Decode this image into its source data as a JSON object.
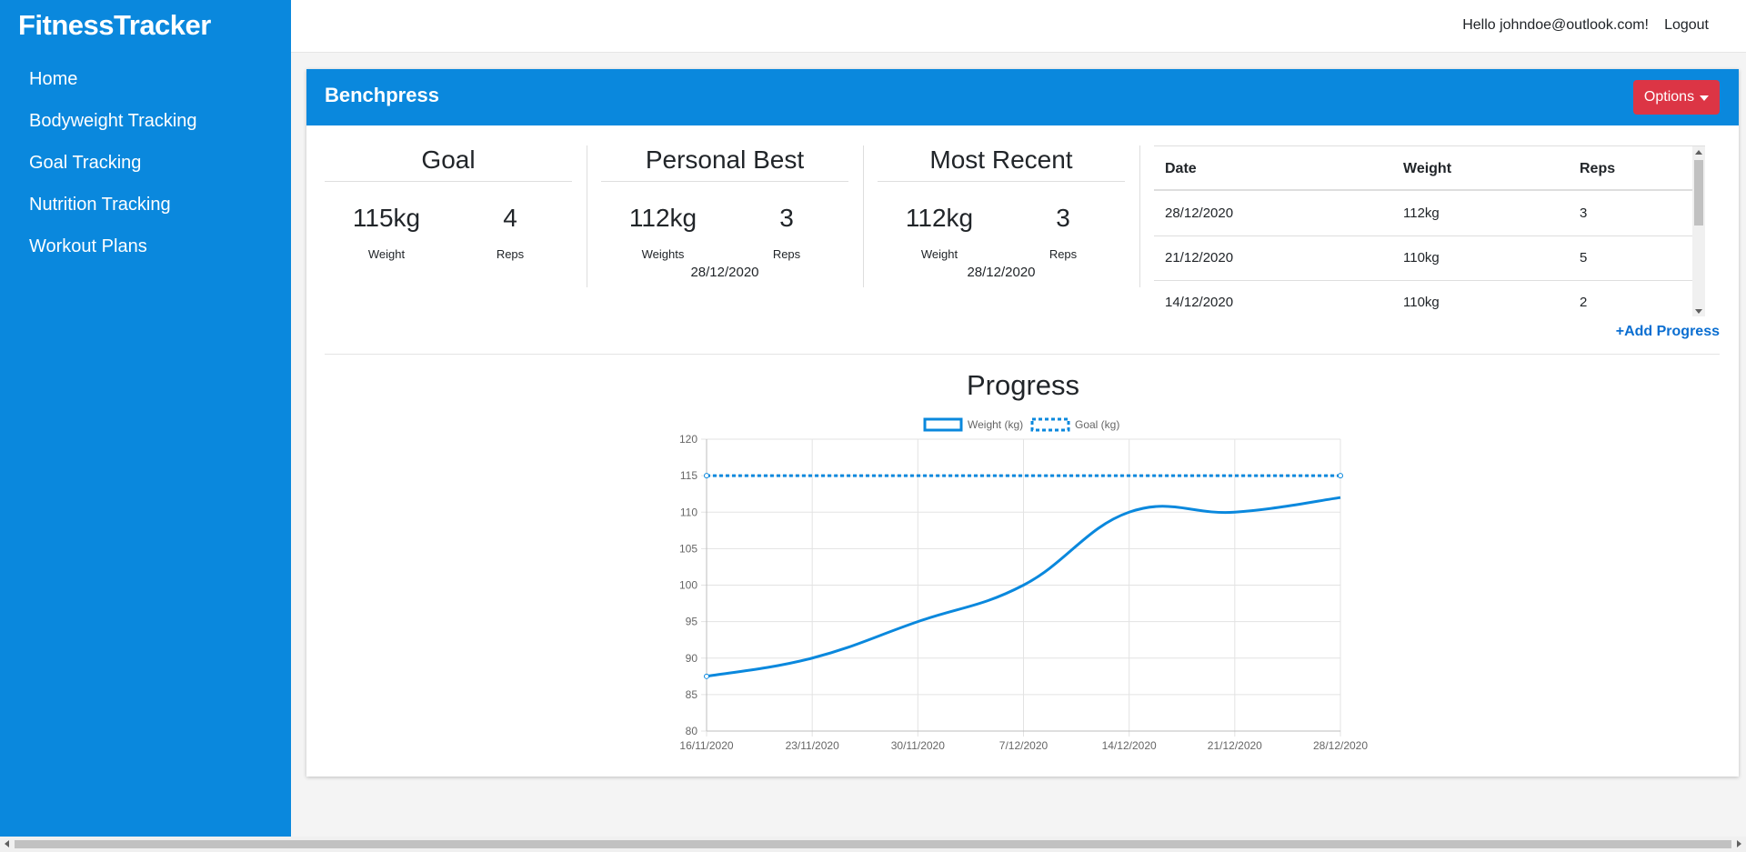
{
  "app": {
    "brand": "FitnessTracker"
  },
  "nav": {
    "items": [
      {
        "label": "Home"
      },
      {
        "label": "Bodyweight Tracking"
      },
      {
        "label": "Goal Tracking"
      },
      {
        "label": "Nutrition Tracking"
      },
      {
        "label": "Workout Plans"
      }
    ]
  },
  "topbar": {
    "greeting": "Hello johndoe@outlook.com!",
    "logout": "Logout"
  },
  "exercise": {
    "title": "Benchpress",
    "options_label": "Options",
    "goal": {
      "title": "Goal",
      "weight": "115kg",
      "weight_label": "Weight",
      "reps": "4",
      "reps_label": "Reps"
    },
    "personal_best": {
      "title": "Personal Best",
      "weight": "112kg",
      "weight_label": "Weights",
      "reps": "3",
      "reps_label": "Reps",
      "date": "28/12/2020"
    },
    "most_recent": {
      "title": "Most Recent",
      "weight": "112kg",
      "weight_label": "Weight",
      "reps": "3",
      "reps_label": "Reps",
      "date": "28/12/2020"
    }
  },
  "history": {
    "headers": {
      "date": "Date",
      "weight": "Weight",
      "reps": "Reps"
    },
    "rows": [
      {
        "date": "28/12/2020",
        "weight": "112kg",
        "reps": "3"
      },
      {
        "date": "21/12/2020",
        "weight": "110kg",
        "reps": "5"
      },
      {
        "date": "14/12/2020",
        "weight": "110kg",
        "reps": "2"
      }
    ],
    "add_label": "+Add Progress"
  },
  "progress": {
    "title": "Progress"
  },
  "colors": {
    "brand_blue": "#0a88dd",
    "danger": "#dc3545",
    "link": "#0a6ed1"
  },
  "chart_data": {
    "type": "line",
    "title": "Progress",
    "x": [
      "16/11/2020",
      "23/11/2020",
      "30/11/2020",
      "7/12/2020",
      "14/12/2020",
      "21/12/2020",
      "28/12/2020"
    ],
    "series": [
      {
        "name": "Weight (kg)",
        "values": [
          87.5,
          90,
          95,
          100,
          110,
          110,
          112
        ],
        "style": "solid",
        "color": "#0a88dd"
      },
      {
        "name": "Goal (kg)",
        "values": [
          115,
          115,
          115,
          115,
          115,
          115,
          115
        ],
        "style": "dashed",
        "color": "#0a88dd"
      }
    ],
    "ylim": [
      80,
      120
    ],
    "yticks": [
      80,
      85,
      90,
      95,
      100,
      105,
      110,
      115,
      120
    ],
    "grid": true,
    "legend": "top-center"
  }
}
